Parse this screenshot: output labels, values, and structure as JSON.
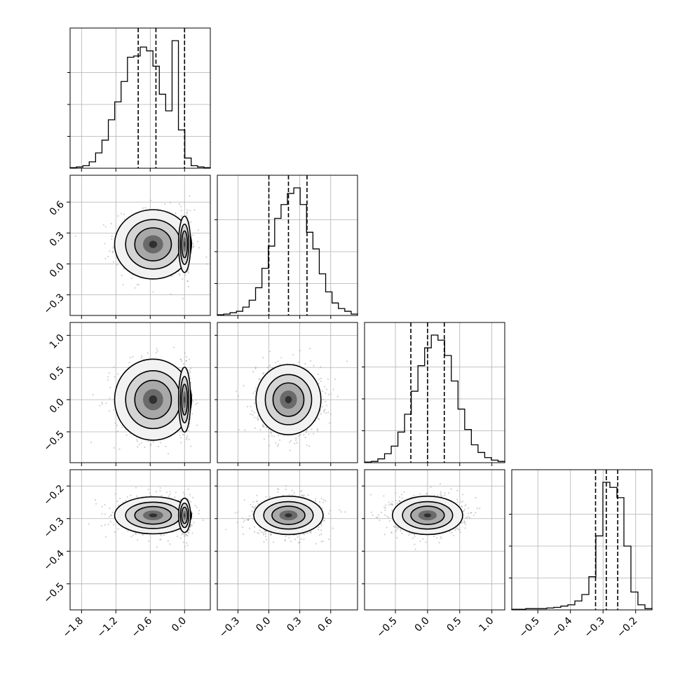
{
  "chart_data": {
    "type": "corner",
    "grid": true,
    "parameters": [
      {
        "ticks": [
          -1.8,
          -1.2,
          -0.6,
          0.0
        ],
        "tick_labels": [
          "−1.8",
          "−1.2",
          "−0.6",
          "0.0"
        ],
        "range": [
          -2.0,
          0.45
        ],
        "quantiles": [
          -0.81,
          -0.5,
          0.0
        ]
      },
      {
        "ticks": [
          -0.3,
          0.0,
          0.3,
          0.6
        ],
        "tick_labels": [
          "−0.3",
          "0.0",
          "0.3",
          "0.6"
        ],
        "range": [
          -0.5,
          0.86
        ],
        "quantiles": [
          0.0,
          0.19,
          0.37
        ]
      },
      {
        "ticks": [
          -0.5,
          0.0,
          0.5,
          1.0
        ],
        "tick_labels": [
          "−0.5",
          "0.0",
          "0.5",
          "1.0"
        ],
        "range": [
          -0.98,
          1.2
        ],
        "quantiles": [
          -0.26,
          0.0,
          0.26
        ]
      },
      {
        "ticks": [
          -0.5,
          -0.4,
          -0.3,
          -0.2
        ],
        "tick_labels": [
          "−0.5",
          "−0.4",
          "−0.3",
          "−0.2"
        ],
        "range": [
          -0.58,
          -0.15
        ],
        "quantiles": [
          -0.323,
          -0.29,
          -0.255
        ]
      }
    ],
    "histograms": [
      {
        "counts": [
          0.5,
          1,
          2,
          5,
          12,
          22,
          38,
          52,
          68,
          87,
          88,
          95,
          92,
          80,
          58,
          45,
          100,
          30,
          8,
          2,
          1,
          0.5
        ]
      },
      {
        "counts": [
          0.5,
          1,
          2,
          3,
          6,
          11,
          20,
          34,
          50,
          70,
          80,
          88,
          92,
          80,
          60,
          48,
          30,
          17,
          9,
          5,
          3,
          1
        ]
      },
      {
        "counts": [
          0.5,
          1,
          3,
          7,
          13,
          24,
          38,
          56,
          76,
          90,
          100,
          96,
          84,
          64,
          42,
          26,
          14,
          8,
          4,
          2,
          1
        ]
      },
      {
        "counts": [
          0.5,
          0.5,
          1,
          1,
          1,
          1.5,
          2,
          3,
          4,
          7,
          12,
          26,
          58,
          100,
          96,
          88,
          50,
          14,
          4,
          1
        ]
      }
    ],
    "pairs": [
      {
        "row": 1,
        "col": 0,
        "modes": [
          [
            -0.55,
            0.19,
            0.32,
            0.16,
            0.8
          ],
          [
            0.0,
            0.19,
            0.05,
            0.13,
            0.5
          ]
        ]
      },
      {
        "row": 2,
        "col": 0,
        "modes": [
          [
            -0.55,
            0.0,
            0.32,
            0.3,
            0.8
          ],
          [
            0.0,
            0.0,
            0.05,
            0.24,
            0.5
          ]
        ]
      },
      {
        "row": 2,
        "col": 1,
        "modes": [
          [
            0.19,
            0.0,
            0.15,
            0.26,
            1
          ]
        ]
      },
      {
        "row": 3,
        "col": 0,
        "modes": [
          [
            -0.55,
            -0.29,
            0.32,
            0.027,
            0.8
          ],
          [
            0.0,
            -0.29,
            0.05,
            0.025,
            0.5
          ]
        ]
      },
      {
        "row": 3,
        "col": 1,
        "modes": [
          [
            0.19,
            -0.29,
            0.16,
            0.028,
            1
          ]
        ]
      },
      {
        "row": 3,
        "col": 2,
        "modes": [
          [
            0.0,
            -0.29,
            0.26,
            0.028,
            1
          ]
        ]
      }
    ]
  }
}
